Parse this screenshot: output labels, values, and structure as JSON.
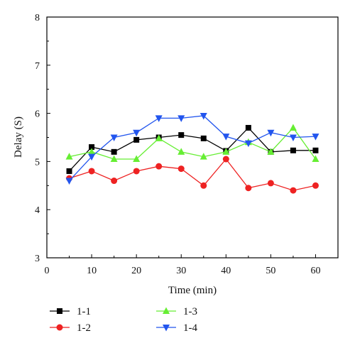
{
  "chart_data": {
    "type": "line",
    "title": "",
    "xlabel": "Time (min)",
    "ylabel": "Delay (S)",
    "xlim": [
      0,
      65
    ],
    "ylim": [
      3,
      8
    ],
    "xticks": [
      0,
      10,
      20,
      30,
      40,
      50,
      60
    ],
    "yticks": [
      3,
      4,
      5,
      6,
      7,
      8
    ],
    "grid": false,
    "legend_position": "bottom",
    "x": [
      5,
      10,
      15,
      20,
      25,
      30,
      35,
      40,
      45,
      50,
      55,
      60
    ],
    "series": [
      {
        "name": "1-1",
        "color": "#000000",
        "marker": "square",
        "values": [
          4.8,
          5.3,
          5.2,
          5.45,
          5.5,
          5.55,
          5.48,
          5.22,
          5.7,
          5.2,
          5.23,
          5.23
        ]
      },
      {
        "name": "1-2",
        "color": "#ee2222",
        "marker": "circle",
        "values": [
          4.65,
          4.8,
          4.6,
          4.8,
          4.9,
          4.85,
          4.5,
          5.05,
          4.45,
          4.55,
          4.4,
          4.5
        ]
      },
      {
        "name": "1-3",
        "color": "#66ee33",
        "marker": "triangle-up",
        "values": [
          5.1,
          5.2,
          5.05,
          5.05,
          5.48,
          5.2,
          5.1,
          5.2,
          5.4,
          5.2,
          5.7,
          5.05
        ]
      },
      {
        "name": "1-4",
        "color": "#2255ee",
        "marker": "triangle-down",
        "values": [
          4.6,
          5.1,
          5.5,
          5.6,
          5.9,
          5.9,
          5.95,
          5.52,
          5.38,
          5.6,
          5.5,
          5.52
        ]
      }
    ]
  }
}
